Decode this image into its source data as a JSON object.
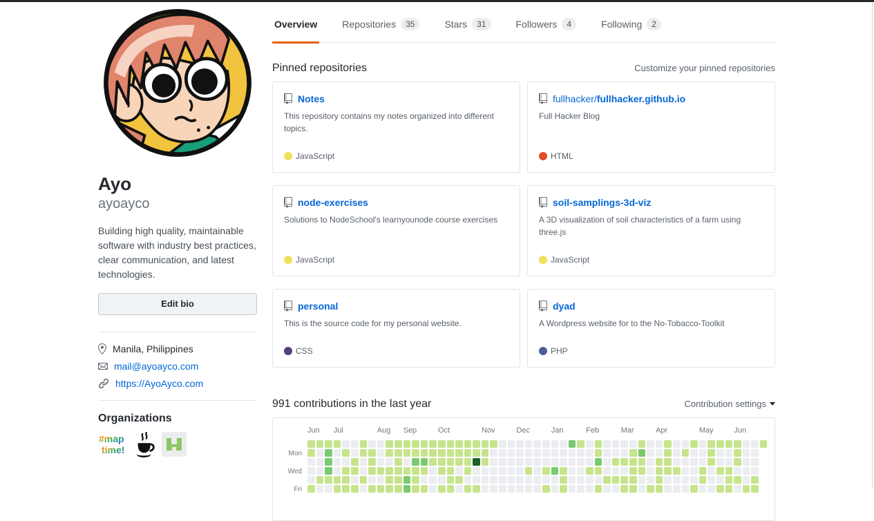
{
  "colors": {
    "accent_orange": "#e36209",
    "link_blue": "#0366d6",
    "card_border": "#e1e4e8",
    "muted_text": "#586069"
  },
  "icons": {
    "location": "location-icon",
    "mail": "mail-icon",
    "website": "link-icon",
    "repo": "repo-icon",
    "caret": "caret-down-icon"
  },
  "profile": {
    "name": "Ayo",
    "username": "ayoayco",
    "bio": "Building high quality, maintainable software with industry best practices, clear communication, and latest technologies.",
    "edit_bio_label": "Edit bio",
    "location": "Manila, Philippines",
    "email": "mail@ayoayco.com",
    "website": "https://AyoAyco.com",
    "organizations_title": "Organizations",
    "organizations": [
      "maptime",
      "coffee",
      "green-org"
    ]
  },
  "tabs": [
    {
      "label": "Overview",
      "count": "",
      "active": true
    },
    {
      "label": "Repositories",
      "count": "35",
      "active": false
    },
    {
      "label": "Stars",
      "count": "31",
      "active": false
    },
    {
      "label": "Followers",
      "count": "4",
      "active": false
    },
    {
      "label": "Following",
      "count": "2",
      "active": false
    }
  ],
  "pinned": {
    "title": "Pinned repositories",
    "customize_label": "Customize your pinned repositories",
    "repos": [
      {
        "owner": "",
        "name": "Notes",
        "description": "This repository contains my notes organized into different topics.",
        "language": "JavaScript",
        "language_color": "#f1e05a"
      },
      {
        "owner": "fullhacker/",
        "name": "fullhacker.github.io",
        "description": "Full Hacker Blog",
        "language": "HTML",
        "language_color": "#e34c26"
      },
      {
        "owner": "",
        "name": "node-exercises",
        "description": "Solutions to NodeSchool's learnyounode course exercises",
        "language": "JavaScript",
        "language_color": "#f1e05a"
      },
      {
        "owner": "",
        "name": "soil-samplings-3d-viz",
        "description": "A 3D visualization of soil characteristics of a farm using three.js",
        "language": "JavaScript",
        "language_color": "#f1e05a"
      },
      {
        "owner": "",
        "name": "personal",
        "description": "This is the source code for my personal website.",
        "language": "CSS",
        "language_color": "#563d7c"
      },
      {
        "owner": "",
        "name": "dyad",
        "description": "A Wordpress website for to the No-Tobacco-Toolkit",
        "language": "PHP",
        "language_color": "#4F5D95"
      }
    ]
  },
  "contributions": {
    "title": "991 contributions in the last year",
    "settings_label": "Contribution settings",
    "months": [
      {
        "label": "Jun",
        "col": 0
      },
      {
        "label": "Jul",
        "col": 3
      },
      {
        "label": "Aug",
        "col": 8
      },
      {
        "label": "Sep",
        "col": 11
      },
      {
        "label": "Oct",
        "col": 15
      },
      {
        "label": "Nov",
        "col": 20
      },
      {
        "label": "Dec",
        "col": 24
      },
      {
        "label": "Jan",
        "col": 28
      },
      {
        "label": "Feb",
        "col": 32
      },
      {
        "label": "Mar",
        "col": 36
      },
      {
        "label": "Apr",
        "col": 40
      },
      {
        "label": "May",
        "col": 45
      },
      {
        "label": "Jun",
        "col": 49
      }
    ],
    "day_labels": [
      "",
      "Mon",
      "",
      "Wed",
      "",
      "Fri"
    ],
    "level_colors": [
      "#ebedf0",
      "#c6e48b",
      "#7bc96f",
      "#239a3b",
      "#196127"
    ],
    "grid": [
      [
        1,
        1,
        1,
        1,
        0,
        0,
        1,
        0,
        0,
        1,
        1,
        1,
        1,
        1,
        1,
        1,
        1,
        1,
        1,
        1,
        1,
        1,
        0,
        0,
        0,
        0,
        0,
        0,
        0,
        0,
        2,
        1,
        0,
        1,
        0,
        0,
        0,
        0,
        1,
        0,
        0,
        1,
        0,
        0,
        1,
        0,
        1,
        1,
        1,
        1,
        0,
        0,
        1
      ],
      [
        1,
        0,
        2,
        0,
        1,
        0,
        1,
        1,
        0,
        1,
        1,
        1,
        1,
        1,
        1,
        1,
        1,
        1,
        1,
        1,
        1,
        0,
        0,
        0,
        0,
        0,
        0,
        0,
        0,
        0,
        0,
        0,
        0,
        1,
        0,
        0,
        0,
        1,
        2,
        0,
        0,
        1,
        0,
        1,
        0,
        0,
        1,
        0,
        0,
        1,
        0,
        0,
        -1
      ],
      [
        0,
        0,
        2,
        0,
        0,
        1,
        0,
        1,
        0,
        0,
        1,
        0,
        2,
        2,
        1,
        1,
        1,
        1,
        1,
        4,
        1,
        0,
        0,
        0,
        0,
        0,
        0,
        0,
        0,
        0,
        0,
        0,
        0,
        2,
        0,
        1,
        1,
        1,
        1,
        0,
        1,
        1,
        0,
        0,
        0,
        0,
        1,
        0,
        0,
        1,
        0,
        0,
        -1
      ],
      [
        0,
        0,
        2,
        0,
        1,
        1,
        0,
        1,
        1,
        1,
        1,
        1,
        1,
        1,
        0,
        1,
        1,
        0,
        1,
        0,
        0,
        0,
        0,
        0,
        0,
        1,
        0,
        1,
        2,
        1,
        0,
        0,
        1,
        1,
        0,
        0,
        0,
        1,
        1,
        0,
        1,
        1,
        1,
        0,
        0,
        1,
        0,
        1,
        1,
        0,
        0,
        0,
        -1
      ],
      [
        0,
        1,
        1,
        1,
        1,
        0,
        1,
        0,
        0,
        1,
        1,
        2,
        1,
        0,
        0,
        0,
        1,
        1,
        0,
        0,
        0,
        0,
        0,
        0,
        0,
        0,
        0,
        0,
        0,
        1,
        0,
        0,
        0,
        0,
        1,
        1,
        1,
        1,
        0,
        0,
        1,
        0,
        0,
        0,
        0,
        1,
        0,
        0,
        1,
        1,
        0,
        1,
        -1
      ],
      [
        1,
        0,
        0,
        1,
        1,
        1,
        0,
        1,
        1,
        1,
        1,
        2,
        1,
        1,
        0,
        1,
        1,
        0,
        1,
        1,
        0,
        0,
        0,
        0,
        0,
        0,
        0,
        1,
        0,
        1,
        0,
        0,
        0,
        1,
        0,
        0,
        1,
        1,
        0,
        1,
        1,
        0,
        0,
        0,
        1,
        0,
        0,
        1,
        1,
        0,
        1,
        1,
        -1
      ]
    ]
  }
}
